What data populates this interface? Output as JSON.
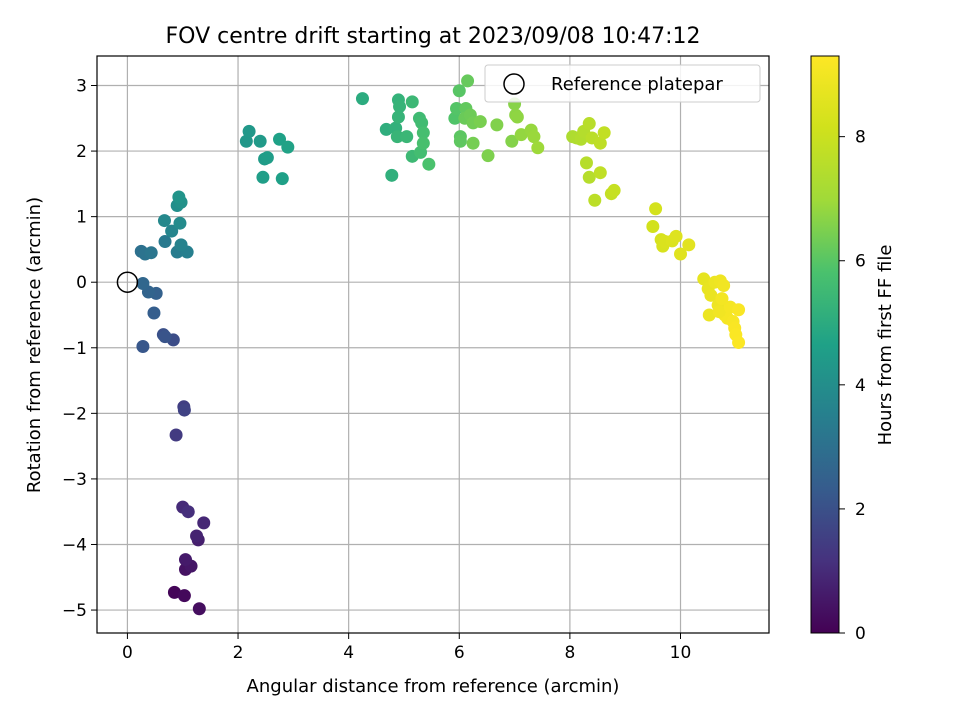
{
  "chart_data": {
    "type": "scatter",
    "title": "FOV centre drift starting at 2023/09/08 10:47:12",
    "xlabel": "Angular distance from reference (arcmin)",
    "ylabel": "Rotation from reference (arcmin)",
    "xlim": [
      -0.55,
      11.6
    ],
    "ylim": [
      -5.35,
      3.45
    ],
    "xticks": [
      0,
      2,
      4,
      6,
      8,
      10
    ],
    "yticks": [
      -5,
      -4,
      -3,
      -2,
      -1,
      0,
      1,
      2,
      3
    ],
    "grid": true,
    "legend": {
      "placement": "top-right",
      "entries": [
        "Reference platepar"
      ]
    },
    "reference_point": {
      "x": 0,
      "y": 0
    },
    "colorbar": {
      "label": "Hours from first FF file",
      "colormap": "viridis",
      "range": [
        0,
        9.3
      ],
      "ticks": [
        0,
        2,
        4,
        6,
        8
      ]
    },
    "points": [
      {
        "x": 0.85,
        "y": -4.73,
        "c": 0.1
      },
      {
        "x": 1.03,
        "y": -4.78,
        "c": 0.2
      },
      {
        "x": 1.3,
        "y": -4.98,
        "c": 0.3
      },
      {
        "x": 1.05,
        "y": -4.38,
        "c": 0.4
      },
      {
        "x": 1.15,
        "y": -4.33,
        "c": 0.5
      },
      {
        "x": 1.05,
        "y": -4.23,
        "c": 0.6
      },
      {
        "x": 1.28,
        "y": -3.93,
        "c": 0.7
      },
      {
        "x": 1.25,
        "y": -3.87,
        "c": 0.8
      },
      {
        "x": 1.38,
        "y": -3.67,
        "c": 0.9
      },
      {
        "x": 1.0,
        "y": -3.43,
        "c": 1.0
      },
      {
        "x": 1.1,
        "y": -3.5,
        "c": 1.1
      },
      {
        "x": 0.88,
        "y": -2.33,
        "c": 1.4
      },
      {
        "x": 1.02,
        "y": -1.9,
        "c": 1.5
      },
      {
        "x": 1.03,
        "y": -1.95,
        "c": 1.6
      },
      {
        "x": 0.83,
        "y": -0.88,
        "c": 1.9
      },
      {
        "x": 0.65,
        "y": -0.8,
        "c": 2.0
      },
      {
        "x": 0.68,
        "y": -0.83,
        "c": 2.1
      },
      {
        "x": 0.28,
        "y": -0.98,
        "c": 2.2
      },
      {
        "x": 0.48,
        "y": -0.47,
        "c": 2.4
      },
      {
        "x": 0.52,
        "y": -0.17,
        "c": 2.5
      },
      {
        "x": 0.38,
        "y": -0.15,
        "c": 2.6
      },
      {
        "x": 0.28,
        "y": -0.02,
        "c": 2.7
      },
      {
        "x": 0.25,
        "y": 0.47,
        "c": 3.0
      },
      {
        "x": 0.32,
        "y": 0.43,
        "c": 3.1
      },
      {
        "x": 0.43,
        "y": 0.45,
        "c": 3.2
      },
      {
        "x": 0.68,
        "y": 0.62,
        "c": 3.3
      },
      {
        "x": 0.9,
        "y": 0.46,
        "c": 3.4
      },
      {
        "x": 1.08,
        "y": 0.46,
        "c": 3.5
      },
      {
        "x": 0.97,
        "y": 0.57,
        "c": 3.6
      },
      {
        "x": 0.8,
        "y": 0.78,
        "c": 3.7
      },
      {
        "x": 0.67,
        "y": 0.94,
        "c": 3.8
      },
      {
        "x": 0.95,
        "y": 0.9,
        "c": 3.9
      },
      {
        "x": 0.9,
        "y": 1.17,
        "c": 4.0
      },
      {
        "x": 0.97,
        "y": 1.22,
        "c": 4.1
      },
      {
        "x": 0.93,
        "y": 1.3,
        "c": 4.2
      },
      {
        "x": 2.15,
        "y": 2.15,
        "c": 4.3
      },
      {
        "x": 2.2,
        "y": 2.3,
        "c": 4.35
      },
      {
        "x": 2.4,
        "y": 2.15,
        "c": 4.4
      },
      {
        "x": 2.48,
        "y": 1.88,
        "c": 4.45
      },
      {
        "x": 2.53,
        "y": 1.9,
        "c": 4.5
      },
      {
        "x": 2.45,
        "y": 1.6,
        "c": 4.55
      },
      {
        "x": 2.8,
        "y": 1.58,
        "c": 4.6
      },
      {
        "x": 2.75,
        "y": 2.18,
        "c": 4.65
      },
      {
        "x": 2.9,
        "y": 2.06,
        "c": 4.7
      },
      {
        "x": 4.25,
        "y": 2.8,
        "c": 5.0
      },
      {
        "x": 4.68,
        "y": 2.33,
        "c": 5.1
      },
      {
        "x": 4.78,
        "y": 1.63,
        "c": 5.15
      },
      {
        "x": 4.85,
        "y": 2.35,
        "c": 5.2
      },
      {
        "x": 4.9,
        "y": 2.78,
        "c": 5.25
      },
      {
        "x": 4.92,
        "y": 2.68,
        "c": 5.3
      },
      {
        "x": 4.9,
        "y": 2.52,
        "c": 5.3
      },
      {
        "x": 4.88,
        "y": 2.22,
        "c": 5.35
      },
      {
        "x": 5.05,
        "y": 2.22,
        "c": 5.4
      },
      {
        "x": 5.15,
        "y": 2.75,
        "c": 5.45
      },
      {
        "x": 5.15,
        "y": 1.92,
        "c": 5.5
      },
      {
        "x": 5.28,
        "y": 2.5,
        "c": 5.55
      },
      {
        "x": 5.32,
        "y": 2.43,
        "c": 5.6
      },
      {
        "x": 5.3,
        "y": 1.98,
        "c": 5.65
      },
      {
        "x": 5.35,
        "y": 2.28,
        "c": 5.7
      },
      {
        "x": 5.35,
        "y": 2.12,
        "c": 5.75
      },
      {
        "x": 5.45,
        "y": 1.8,
        "c": 5.8
      },
      {
        "x": 5.92,
        "y": 2.5,
        "c": 5.9
      },
      {
        "x": 5.95,
        "y": 2.65,
        "c": 5.95
      },
      {
        "x": 6.0,
        "y": 2.92,
        "c": 6.0
      },
      {
        "x": 6.02,
        "y": 2.22,
        "c": 6.05
      },
      {
        "x": 6.02,
        "y": 2.15,
        "c": 6.1
      },
      {
        "x": 6.12,
        "y": 2.65,
        "c": 6.15
      },
      {
        "x": 6.15,
        "y": 3.07,
        "c": 6.2
      },
      {
        "x": 6.1,
        "y": 2.5,
        "c": 6.25
      },
      {
        "x": 6.2,
        "y": 2.55,
        "c": 6.3
      },
      {
        "x": 6.25,
        "y": 2.43,
        "c": 6.35
      },
      {
        "x": 6.25,
        "y": 2.12,
        "c": 6.4
      },
      {
        "x": 6.38,
        "y": 2.45,
        "c": 6.45
      },
      {
        "x": 6.52,
        "y": 1.93,
        "c": 6.5
      },
      {
        "x": 6.68,
        "y": 2.4,
        "c": 6.55
      },
      {
        "x": 6.95,
        "y": 2.15,
        "c": 6.6
      },
      {
        "x": 7.0,
        "y": 2.72,
        "c": 6.65
      },
      {
        "x": 7.02,
        "y": 2.55,
        "c": 6.7
      },
      {
        "x": 7.05,
        "y": 2.52,
        "c": 6.75
      },
      {
        "x": 7.12,
        "y": 2.25,
        "c": 6.8
      },
      {
        "x": 7.3,
        "y": 2.32,
        "c": 6.85
      },
      {
        "x": 7.35,
        "y": 2.22,
        "c": 6.9
      },
      {
        "x": 7.42,
        "y": 2.05,
        "c": 6.95
      },
      {
        "x": 8.05,
        "y": 2.22,
        "c": 7.3
      },
      {
        "x": 8.12,
        "y": 2.2,
        "c": 7.35
      },
      {
        "x": 8.2,
        "y": 2.18,
        "c": 7.4
      },
      {
        "x": 8.25,
        "y": 2.3,
        "c": 7.45
      },
      {
        "x": 8.3,
        "y": 1.82,
        "c": 7.5
      },
      {
        "x": 8.35,
        "y": 1.6,
        "c": 7.5
      },
      {
        "x": 8.35,
        "y": 2.42,
        "c": 7.55
      },
      {
        "x": 8.4,
        "y": 2.2,
        "c": 7.6
      },
      {
        "x": 8.45,
        "y": 1.25,
        "c": 7.65
      },
      {
        "x": 8.55,
        "y": 2.12,
        "c": 7.7
      },
      {
        "x": 8.55,
        "y": 1.67,
        "c": 7.75
      },
      {
        "x": 8.62,
        "y": 2.28,
        "c": 7.8
      },
      {
        "x": 8.75,
        "y": 1.35,
        "c": 7.85
      },
      {
        "x": 8.8,
        "y": 1.4,
        "c": 7.9
      },
      {
        "x": 9.5,
        "y": 0.85,
        "c": 8.2
      },
      {
        "x": 9.55,
        "y": 1.12,
        "c": 8.25
      },
      {
        "x": 9.65,
        "y": 0.65,
        "c": 8.3
      },
      {
        "x": 9.68,
        "y": 0.55,
        "c": 8.35
      },
      {
        "x": 9.72,
        "y": 0.62,
        "c": 8.4
      },
      {
        "x": 9.85,
        "y": 0.63,
        "c": 8.45
      },
      {
        "x": 9.92,
        "y": 0.7,
        "c": 8.5
      },
      {
        "x": 10.0,
        "y": 0.43,
        "c": 8.55
      },
      {
        "x": 10.15,
        "y": 0.57,
        "c": 8.6
      },
      {
        "x": 10.42,
        "y": 0.05,
        "c": 8.7
      },
      {
        "x": 10.5,
        "y": -0.1,
        "c": 8.75
      },
      {
        "x": 10.55,
        "y": -0.2,
        "c": 8.8
      },
      {
        "x": 10.62,
        "y": 0.0,
        "c": 8.85
      },
      {
        "x": 10.68,
        "y": -0.35,
        "c": 8.9
      },
      {
        "x": 10.72,
        "y": 0.02,
        "c": 8.95
      },
      {
        "x": 10.78,
        "y": -0.05,
        "c": 9.0
      },
      {
        "x": 10.8,
        "y": -0.5,
        "c": 9.05
      },
      {
        "x": 10.85,
        "y": -0.55,
        "c": 9.1
      },
      {
        "x": 10.52,
        "y": -0.5,
        "c": 8.85
      },
      {
        "x": 10.7,
        "y": -0.45,
        "c": 9.0
      },
      {
        "x": 10.9,
        "y": -0.38,
        "c": 9.1
      },
      {
        "x": 10.95,
        "y": -0.6,
        "c": 9.15
      },
      {
        "x": 10.98,
        "y": -0.7,
        "c": 9.2
      },
      {
        "x": 11.0,
        "y": -0.8,
        "c": 9.22
      },
      {
        "x": 11.05,
        "y": -0.92,
        "c": 9.25
      },
      {
        "x": 11.05,
        "y": -0.42,
        "c": 9.2
      },
      {
        "x": 10.75,
        "y": -0.25,
        "c": 9.05
      }
    ]
  }
}
